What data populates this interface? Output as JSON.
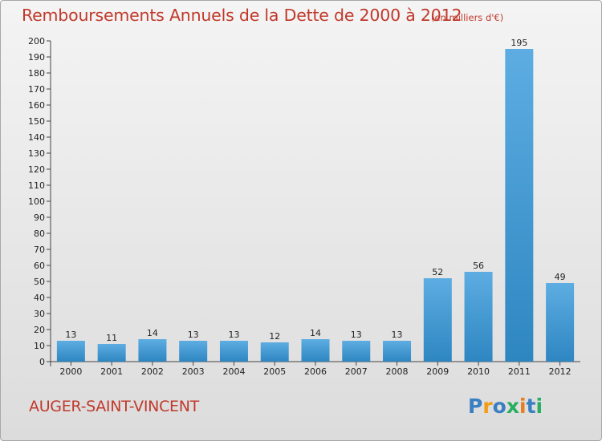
{
  "chart_data": {
    "type": "bar",
    "title": "Remboursements Annuels de la Dette de 2000 à 2012",
    "subtitle": "(en milliers d'€)",
    "categories": [
      "2000",
      "2001",
      "2002",
      "2003",
      "2004",
      "2005",
      "2006",
      "2007",
      "2008",
      "2009",
      "2010",
      "2011",
      "2012"
    ],
    "values": [
      13,
      11,
      14,
      13,
      13,
      12,
      14,
      13,
      13,
      52,
      56,
      195,
      49
    ],
    "ylim": [
      0,
      200
    ],
    "yticks": [
      0,
      10,
      20,
      30,
      40,
      50,
      60,
      70,
      80,
      90,
      100,
      110,
      120,
      130,
      140,
      150,
      160,
      170,
      180,
      190,
      200
    ],
    "grid": false,
    "legend": "none",
    "bar_color_light": "#5dade2",
    "bar_color_dark": "#2e86c1"
  },
  "footer": {
    "commune": "AUGER-SAINT-VINCENT",
    "logo_text": "Proxiti"
  },
  "colors": {
    "title": "#c0392b",
    "logo": [
      "#3a7fc1",
      "#f39c12",
      "#3a7fc1",
      "#27ae60",
      "#e67e22",
      "#3a7fc1",
      "#27ae60"
    ]
  }
}
